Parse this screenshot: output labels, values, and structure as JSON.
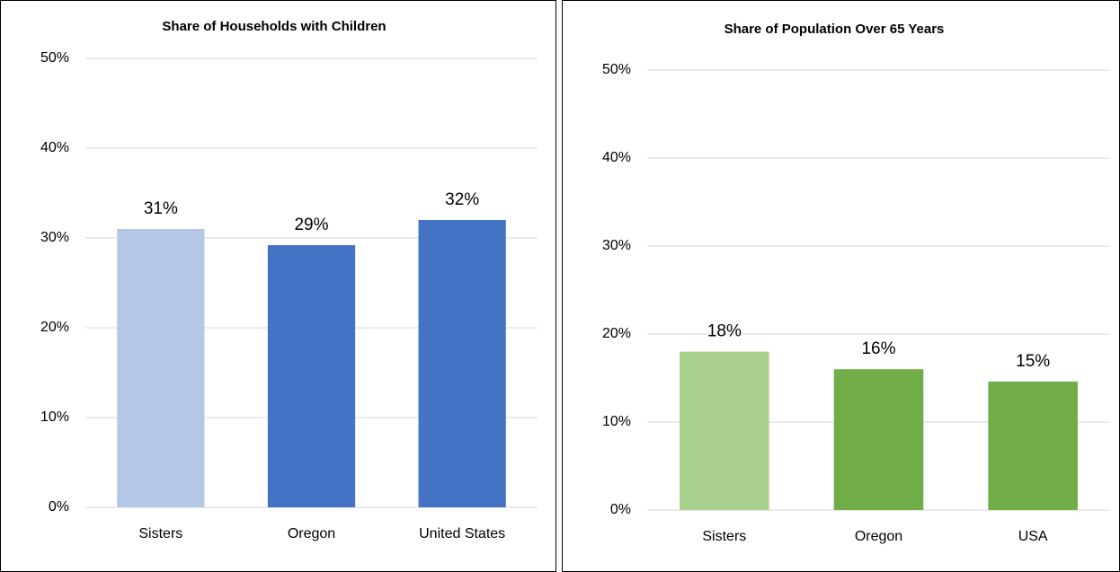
{
  "chart_data": [
    {
      "type": "bar",
      "title": "Share of Households with Children",
      "categories": [
        "Sisters",
        "Oregon",
        "United States"
      ],
      "values": [
        31,
        29.2,
        32
      ],
      "value_labels": [
        "31%",
        "29%",
        "32%"
      ],
      "colors": [
        "#b4c7e7",
        "#4472c4",
        "#4472c4"
      ],
      "ylim": [
        0,
        50
      ],
      "yticks": [
        {
          "value": 0,
          "label": "0%"
        },
        {
          "value": 10,
          "label": "10%"
        },
        {
          "value": 20,
          "label": "20%"
        },
        {
          "value": 30,
          "label": "30%"
        },
        {
          "value": 40,
          "label": "40%"
        },
        {
          "value": 50,
          "label": "50%"
        }
      ],
      "grid": true
    },
    {
      "type": "bar",
      "title": "Share of Population Over 65 Years",
      "categories": [
        "Sisters",
        "Oregon",
        "USA"
      ],
      "values": [
        18,
        16,
        14.6
      ],
      "value_labels": [
        "18%",
        "16%",
        "15%"
      ],
      "colors": [
        "#a9d18e",
        "#70ad47",
        "#70ad47"
      ],
      "ylim": [
        0,
        50
      ],
      "yticks": [
        {
          "value": 0,
          "label": "0%"
        },
        {
          "value": 10,
          "label": "10%"
        },
        {
          "value": 20,
          "label": "20%"
        },
        {
          "value": 30,
          "label": "30%"
        },
        {
          "value": 40,
          "label": "40%"
        },
        {
          "value": 50,
          "label": "50%"
        }
      ],
      "grid": true
    }
  ]
}
